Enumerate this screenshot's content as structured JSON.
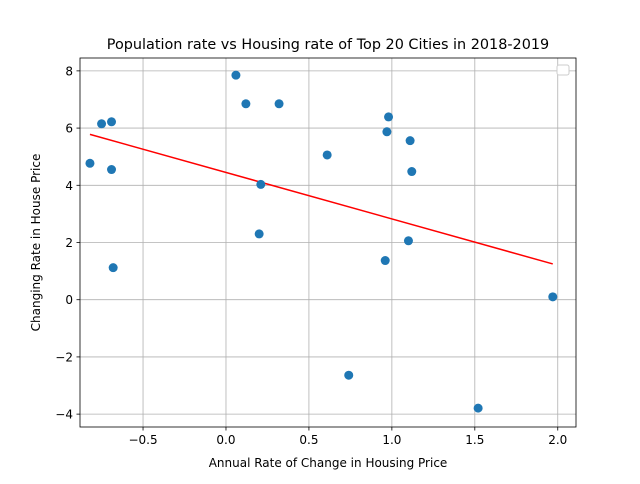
{
  "chart_data": {
    "type": "scatter",
    "title": "Population rate vs Housing rate of Top 20 Cities in 2018-2019",
    "xlabel": "Annual Rate of Change in Housing Price",
    "ylabel": "Changing Rate in House Price",
    "xlim": [
      -0.88,
      2.11
    ],
    "ylim": [
      -4.45,
      8.45
    ],
    "xticks": [
      -0.5,
      0.0,
      0.5,
      1.0,
      1.5,
      2.0
    ],
    "xtick_labels": [
      "−0.5",
      "0.0",
      "0.5",
      "1.0",
      "1.5",
      "2.0"
    ],
    "yticks": [
      -4,
      -2,
      0,
      2,
      4,
      6,
      8
    ],
    "ytick_labels": [
      "−4",
      "−2",
      "0",
      "2",
      "4",
      "6",
      "8"
    ],
    "grid": true,
    "legend": "top-right",
    "colors": {
      "points": "#1f77b4",
      "trend": "#ff0000"
    },
    "points": [
      {
        "x": -0.82,
        "y": 4.77
      },
      {
        "x": -0.75,
        "y": 6.15
      },
      {
        "x": -0.69,
        "y": 6.22
      },
      {
        "x": -0.69,
        "y": 4.55
      },
      {
        "x": -0.68,
        "y": 1.12
      },
      {
        "x": 0.06,
        "y": 7.85
      },
      {
        "x": 0.12,
        "y": 6.85
      },
      {
        "x": 0.32,
        "y": 6.85
      },
      {
        "x": 0.21,
        "y": 4.03
      },
      {
        "x": 0.2,
        "y": 2.3
      },
      {
        "x": 0.61,
        "y": 5.06
      },
      {
        "x": 0.74,
        "y": -2.64
      },
      {
        "x": 0.96,
        "y": 1.37
      },
      {
        "x": 0.97,
        "y": 5.87
      },
      {
        "x": 0.98,
        "y": 6.39
      },
      {
        "x": 1.1,
        "y": 2.06
      },
      {
        "x": 1.11,
        "y": 5.56
      },
      {
        "x": 1.12,
        "y": 4.48
      },
      {
        "x": 1.52,
        "y": -3.79
      },
      {
        "x": 1.97,
        "y": 0.1
      }
    ],
    "trend": [
      {
        "x": -0.82,
        "y": 5.78
      },
      {
        "x": 1.97,
        "y": 1.25
      }
    ]
  }
}
